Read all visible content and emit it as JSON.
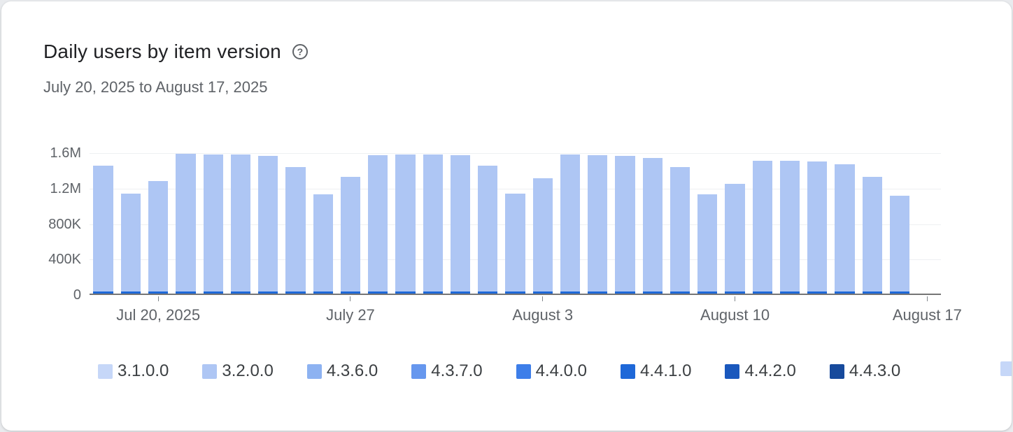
{
  "card": {
    "title": "Daily users by item version",
    "help_icon": "?",
    "subtitle": "July 20, 2025 to August 17, 2025"
  },
  "chart_data": {
    "type": "bar",
    "stacked": true,
    "title": "Daily users by item version",
    "date_range": "July 20, 2025 to August 17, 2025",
    "ylim": [
      0,
      1600000
    ],
    "grid": true,
    "legend_position": "bottom",
    "yticks": [
      {
        "label": "0",
        "value": 0
      },
      {
        "label": "400K",
        "value": 400000
      },
      {
        "label": "800K",
        "value": 800000
      },
      {
        "label": "1.2M",
        "value": 1200000
      },
      {
        "label": "1.6M",
        "value": 1600000
      }
    ],
    "x_slot_count": 31,
    "xticks": [
      {
        "label": "Jul 20, 2025",
        "slot": 2
      },
      {
        "label": "July 27",
        "slot": 9
      },
      {
        "label": "August 3",
        "slot": 16
      },
      {
        "label": "August 10",
        "slot": 23
      },
      {
        "label": "August 17",
        "slot": 30
      }
    ],
    "bars": {
      "totals": [
        1440000,
        1130000,
        1270000,
        1580000,
        1570000,
        1570000,
        1550000,
        1430000,
        1120000,
        1320000,
        1560000,
        1570000,
        1570000,
        1560000,
        1440000,
        1130000,
        1300000,
        1570000,
        1560000,
        1550000,
        1530000,
        1430000,
        1120000,
        1240000,
        1500000,
        1500000,
        1490000,
        1460000,
        1320000,
        1100000
      ],
      "bottom_segment": 25000
    },
    "colors": {
      "bar_main": "#aec6f4",
      "bar_bottom": "#1e68d8"
    },
    "legend": [
      {
        "label": "3.1.0.0",
        "color": "#c6d7f8"
      },
      {
        "label": "3.2.0.0",
        "color": "#aec6f4"
      },
      {
        "label": "4.3.6.0",
        "color": "#8db2f1"
      },
      {
        "label": "4.3.7.0",
        "color": "#6697ee"
      },
      {
        "label": "4.4.0.0",
        "color": "#3d7ee9"
      },
      {
        "label": "4.4.1.0",
        "color": "#1e68d8"
      },
      {
        "label": "4.4.2.0",
        "color": "#1a58bd"
      },
      {
        "label": "4.4.3.0",
        "color": "#174a9c"
      },
      {
        "label": "",
        "color": "#c6d7f8",
        "partial": true
      }
    ]
  }
}
